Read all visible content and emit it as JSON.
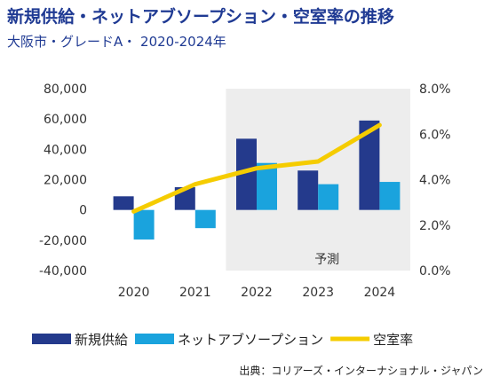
{
  "header": {
    "title": "新規供給・ネットアブソープション・空室率の推移",
    "subtitle": "大阪市・グレードA・ 2020-2024年"
  },
  "chart_data": {
    "type": "bar",
    "categories": [
      "2020",
      "2021",
      "2022",
      "2023",
      "2024"
    ],
    "series": [
      {
        "name": "新規供給",
        "kind": "bar",
        "axis": "left",
        "color": "#243a8c",
        "values": [
          9000,
          15000,
          47000,
          26000,
          59000
        ]
      },
      {
        "name": "ネットアブソープション",
        "kind": "bar",
        "axis": "left",
        "color": "#1aa3dd",
        "values": [
          -19500,
          -12000,
          31000,
          17000,
          18500
        ]
      },
      {
        "name": "空室率",
        "kind": "line",
        "axis": "right",
        "color": "#f5cc00",
        "values": [
          2.6,
          3.8,
          4.5,
          4.8,
          6.4
        ]
      }
    ],
    "y_left": {
      "min": -40000,
      "max": 80000,
      "ticks": [
        "-40,000",
        "-20,000",
        "0",
        "20,000",
        "40,000",
        "60,000",
        "80,000"
      ]
    },
    "y_right": {
      "min": 0,
      "max": 8,
      "ticks": [
        "0.0%",
        "2.0%",
        "4.0%",
        "6.0%",
        "8.0%"
      ]
    },
    "forecast": {
      "label": "予測",
      "from_category": "2022",
      "color": "#ededed"
    },
    "legend": {
      "position": "bottom"
    },
    "grid": false
  },
  "source": "出典：コリアーズ・インターナショナル・ジャパン"
}
